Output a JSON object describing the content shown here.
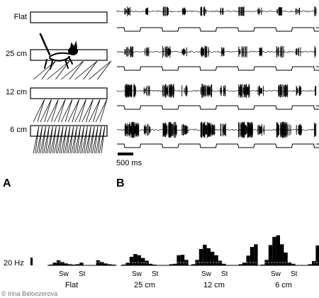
{
  "conditions": [
    {
      "label": "Flat",
      "ladder_rungs": 0,
      "bursts": [
        2,
        1,
        2,
        1,
        2,
        1,
        2,
        1,
        2,
        1
      ],
      "rate_scale": 0.35
    },
    {
      "label": "25 cm",
      "ladder_rungs": 5,
      "bursts": [
        2,
        1,
        2,
        1,
        2,
        1,
        2,
        1,
        2,
        1
      ],
      "rate_scale": 0.55
    },
    {
      "label": "12 cm",
      "ladder_rungs": 10,
      "bursts": [
        3,
        2,
        3,
        2,
        3,
        2,
        3,
        2,
        3,
        2
      ],
      "rate_scale": 0.8
    },
    {
      "label": "6 cm",
      "ladder_rungs": 20,
      "bursts": [
        4,
        3,
        4,
        3,
        4,
        3,
        4,
        3,
        4,
        3
      ],
      "rate_scale": 1.0
    }
  ],
  "scale_bar": {
    "label": "500 ms"
  },
  "panel_labels": {
    "a": "A",
    "b": "B"
  },
  "y_scale": {
    "label": "20 Hz",
    "value_hz": 20
  },
  "phase_labels": {
    "swing": "Sw",
    "stance": "St"
  },
  "credit": "© Irina Beloozerova",
  "chart_data": {
    "type": "bar",
    "ylabel": "20 Hz",
    "unit": "Hz",
    "bins_per_cycle": 10,
    "groups": [
      {
        "name": "Flat",
        "values_hz": [
          2,
          7,
          13,
          9,
          5,
          3,
          2,
          3,
          7,
          13,
          9,
          5,
          3,
          2
        ]
      },
      {
        "name": "25 cm",
        "values_hz": [
          2,
          7,
          22,
          29,
          26,
          19,
          12,
          4,
          2,
          3,
          4,
          26,
          27,
          14
        ]
      },
      {
        "name": "12 cm",
        "values_hz": [
          3,
          14,
          42,
          53,
          44,
          35,
          26,
          12,
          4,
          3,
          7,
          25,
          47,
          54
        ]
      },
      {
        "name": "6 cm",
        "values_hz": [
          2,
          14,
          52,
          73,
          77,
          54,
          33,
          8,
          4,
          3,
          11,
          51,
          71,
          72
        ]
      }
    ]
  }
}
